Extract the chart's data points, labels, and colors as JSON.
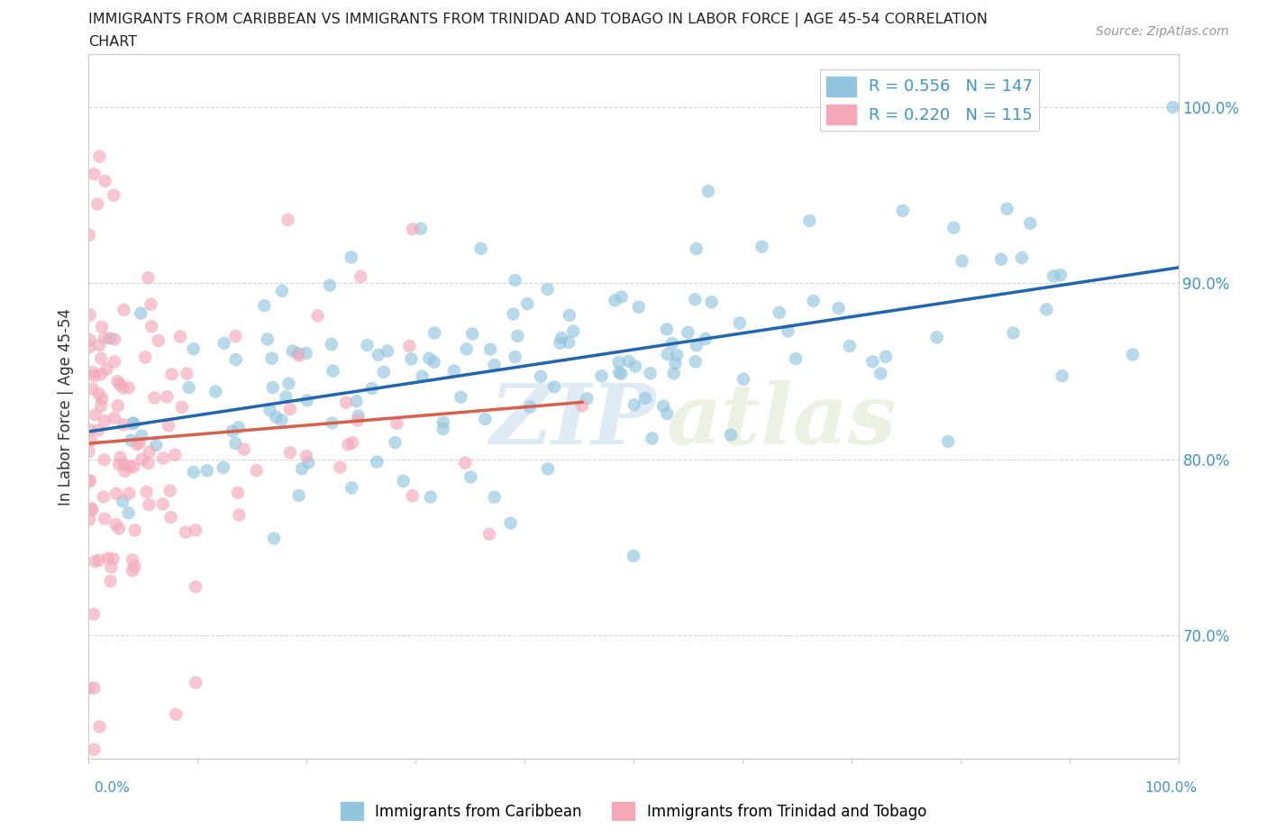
{
  "title_line1": "IMMIGRANTS FROM CARIBBEAN VS IMMIGRANTS FROM TRINIDAD AND TOBAGO IN LABOR FORCE | AGE 45-54 CORRELATION",
  "title_line2": "CHART",
  "source_text": "Source: ZipAtlas.com",
  "ylabel": "In Labor Force | Age 45-54",
  "legend_r1": "R = 0.556",
  "legend_n1": "N = 147",
  "legend_r2": "R = 0.220",
  "legend_n2": "N = 115",
  "color_blue": "#92c5de",
  "color_pink": "#f4a8b8",
  "color_trend_blue": "#2166ac",
  "color_trend_pink": "#d6604d",
  "color_label": "#4393c3",
  "watermark_zip": "ZIP",
  "watermark_atlas": "atlas",
  "xlim": [
    0.0,
    1.0
  ],
  "ylim": [
    0.63,
    1.03
  ],
  "right_ytick_vals": [
    0.7,
    0.8,
    0.9,
    1.0
  ],
  "right_ytick_labels": [
    "70.0%",
    "80.0%",
    "90.0%",
    "100.0%"
  ],
  "seed_blue": 42,
  "seed_pink": 7
}
